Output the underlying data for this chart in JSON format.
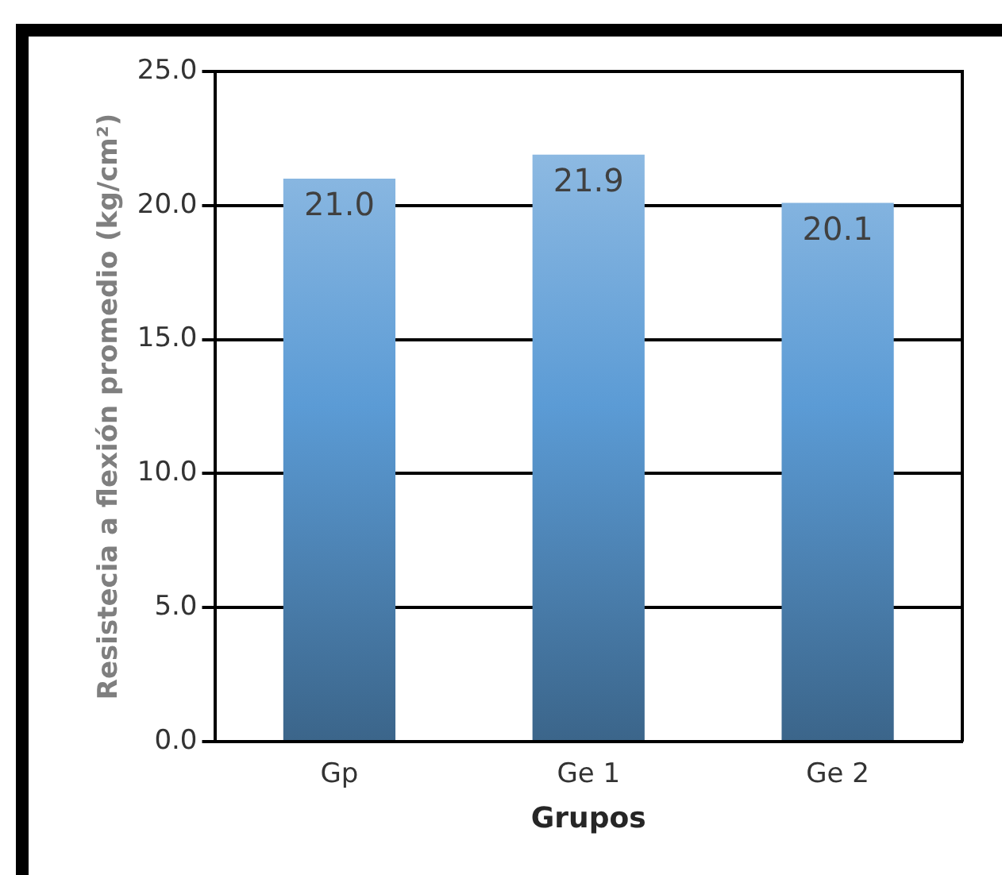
{
  "chart_data": {
    "type": "bar",
    "xlabel": "Grupos",
    "ylabel": "Resistecia a flexión promedio (kg/cm²)",
    "categories": [
      "Gp",
      "Ge 1",
      "Ge 2"
    ],
    "values": [
      21.0,
      21.9,
      20.1
    ],
    "value_labels": [
      "21.0",
      "21.9",
      "20.1"
    ],
    "color": "#5b9bd5",
    "ylim": [
      0,
      25
    ],
    "yticks": [
      {
        "value": 0,
        "label": "0.0"
      },
      {
        "value": 5,
        "label": "5.0"
      },
      {
        "value": 10,
        "label": "10.0"
      },
      {
        "value": 15,
        "label": "15.0"
      },
      {
        "value": 20,
        "label": "20.0"
      },
      {
        "value": 25,
        "label": "25.0"
      }
    ],
    "grid": "y",
    "legend": false
  }
}
